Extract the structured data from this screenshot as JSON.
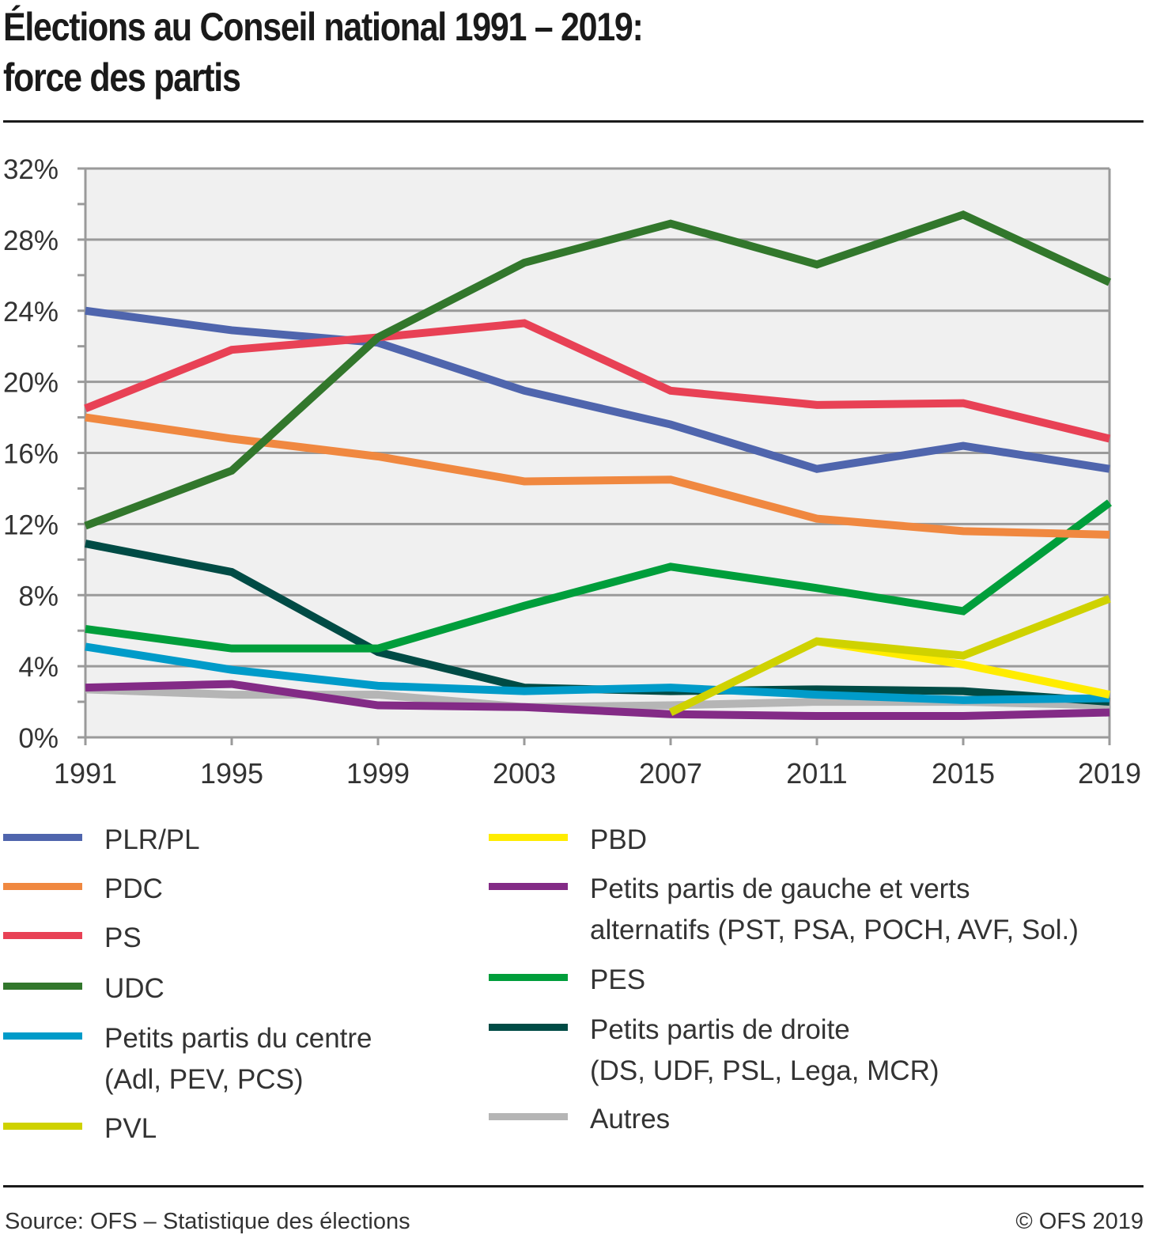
{
  "header": {
    "title_line1": "Élections au Conseil national 1991 – 2019:",
    "title_line2": "force des partis"
  },
  "footer": {
    "source": "Source: OFS – Statistique des élections",
    "copyright": "© OFS 2019"
  },
  "chart_data": {
    "type": "line",
    "title": "Élections au Conseil national 1991 – 2019: force des partis",
    "xlabel": "",
    "ylabel": "",
    "x": [
      "1991",
      "1995",
      "1999",
      "2003",
      "2007",
      "2011",
      "2015",
      "2019"
    ],
    "ylim": [
      0,
      32
    ],
    "yticks": [
      0,
      4,
      8,
      12,
      16,
      20,
      24,
      28,
      32
    ],
    "ytick_labels": [
      "0%",
      "4%",
      "8%",
      "12%",
      "16%",
      "20%",
      "24%",
      "28%",
      "32%"
    ],
    "grid": true,
    "legend_position": "bottom",
    "series": [
      {
        "name": "Autres",
        "color": "#b5b5b5",
        "values": [
          2.7,
          2.4,
          2.4,
          1.7,
          1.8,
          2.0,
          2.0,
          1.8
        ]
      },
      {
        "name": "Petits partis de gauche et verts alternatifs (PST,  PSA, POCH, AVF, Sol.)",
        "color": "#832b86",
        "values": [
          2.8,
          3.0,
          1.8,
          1.7,
          1.3,
          1.2,
          1.2,
          1.4
        ]
      },
      {
        "name": "Petits partis de droite (DS, UDF, PSL, Lega, MCR)",
        "color": "#004b45",
        "values": [
          10.9,
          9.3,
          4.8,
          2.8,
          2.6,
          2.7,
          2.6,
          2.0
        ]
      },
      {
        "name": "Petits partis du centre (Adl, PEV, PCS)",
        "color": "#009bc9",
        "values": [
          5.1,
          3.8,
          2.9,
          2.6,
          2.8,
          2.4,
          2.1,
          2.2
        ]
      },
      {
        "name": "PBD",
        "color": "#ffec00",
        "values": [
          null,
          null,
          null,
          null,
          null,
          5.4,
          4.1,
          2.4
        ]
      },
      {
        "name": "PVL",
        "color": "#cfd200",
        "values": [
          null,
          null,
          null,
          null,
          1.4,
          5.4,
          4.6,
          7.8
        ]
      },
      {
        "name": "PES",
        "color": "#009e3b",
        "values": [
          6.1,
          5.0,
          5.0,
          7.4,
          9.6,
          8.4,
          7.1,
          13.2
        ]
      },
      {
        "name": "PDC",
        "color": "#f08840",
        "values": [
          18.0,
          16.8,
          15.8,
          14.4,
          14.5,
          12.3,
          11.6,
          11.4
        ]
      },
      {
        "name": "PLR/PL",
        "color": "#4f65ad",
        "values": [
          24.0,
          22.9,
          22.2,
          19.5,
          17.6,
          15.1,
          16.4,
          15.1
        ]
      },
      {
        "name": "PS",
        "color": "#e84155",
        "values": [
          18.5,
          21.8,
          22.5,
          23.3,
          19.5,
          18.7,
          18.8,
          16.8
        ]
      },
      {
        "name": "UDC",
        "color": "#32772c",
        "values": [
          11.9,
          15.0,
          22.5,
          26.7,
          28.9,
          26.6,
          29.4,
          25.6
        ]
      }
    ]
  },
  "legend": {
    "left": [
      {
        "label": "PLR/PL",
        "color": "#4f65ad"
      },
      {
        "label": "PDC",
        "color": "#f08840"
      },
      {
        "label": "PS",
        "color": "#e84155"
      },
      {
        "label": "UDC",
        "color": "#32772c"
      },
      {
        "label": "Petits partis du centre\n(Adl, PEV, PCS)",
        "color": "#009bc9"
      },
      {
        "label": "PVL",
        "color": "#cfd200"
      }
    ],
    "right": [
      {
        "label": "PBD",
        "color": "#ffec00"
      },
      {
        "label": "Petits partis de gauche et verts\nalternatifs (PST,  PSA, POCH, AVF, Sol.)",
        "color": "#832b86"
      },
      {
        "label": "PES",
        "color": "#009e3b"
      },
      {
        "label": "Petits partis de droite\n(DS, UDF, PSL, Lega, MCR)",
        "color": "#004b45"
      },
      {
        "label": "Autres",
        "color": "#b5b5b5"
      }
    ]
  }
}
